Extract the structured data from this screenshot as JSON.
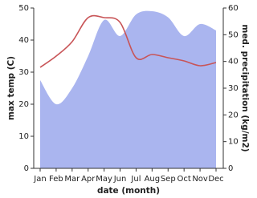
{
  "chart_data": {
    "type": "line",
    "x_label": "date (month)",
    "y_label": "max temp (C)",
    "y2_label": "med. precipitation (kg/m2)",
    "categories": [
      "Jan",
      "Feb",
      "Mar",
      "Apr",
      "May",
      "Jun",
      "Jul",
      "Aug",
      "Sep",
      "Oct",
      "Nov",
      "Dec"
    ],
    "ylim": [
      0,
      50
    ],
    "yticks": [
      0,
      10,
      20,
      30,
      40,
      50
    ],
    "y2lim": [
      0,
      60
    ],
    "y2ticks": [
      0,
      10,
      20,
      30,
      40,
      50,
      60
    ],
    "series": [
      {
        "type": "area",
        "axis": "y2",
        "color": "#aab5ef",
        "values": [
          33,
          24,
          30,
          42,
          55.5,
          49.5,
          57.6,
          58.8,
          56.5,
          49.5,
          54,
          51.6
        ]
      },
      {
        "type": "line",
        "axis": "y",
        "color": "#c85457",
        "values": [
          31.5,
          35,
          39.5,
          47,
          47,
          45.5,
          34.5,
          35.5,
          34.5,
          33.5,
          32,
          33
        ]
      }
    ]
  }
}
